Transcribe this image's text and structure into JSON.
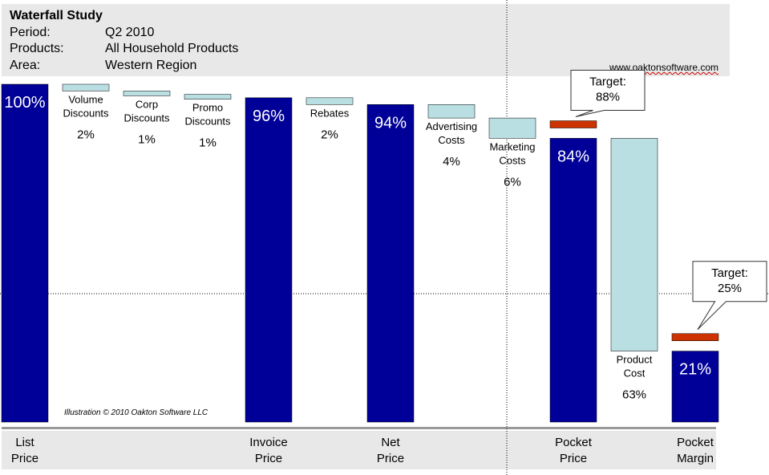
{
  "header": {
    "title": "Waterfall Study",
    "rows": [
      {
        "label": "Period:",
        "value": "Q2 2010"
      },
      {
        "label": "Products:",
        "value": "All Household Products"
      },
      {
        "label": "Area:",
        "value": "Western Region"
      }
    ],
    "url": "www.oaktonsoftware.com"
  },
  "chart_data": {
    "type": "waterfall",
    "unit": "%",
    "ylim": [
      0,
      100
    ],
    "colors": {
      "total": "#000099",
      "drop": "#b9dfe3",
      "target": "#cc3300",
      "axis": "#999999",
      "band": "#e8e8e8"
    },
    "steps": [
      {
        "kind": "total",
        "name": [
          "List",
          "Price"
        ],
        "value": 100,
        "label": "100%"
      },
      {
        "kind": "drop",
        "name": [
          "Volume",
          "Discounts"
        ],
        "value": 2,
        "label": "2%"
      },
      {
        "kind": "drop",
        "name": [
          "Corp",
          "Discounts"
        ],
        "value": 1,
        "label": "1%"
      },
      {
        "kind": "drop",
        "name": [
          "Promo",
          "Discounts"
        ],
        "value": 1,
        "label": "1%"
      },
      {
        "kind": "total",
        "name": [
          "Invoice",
          "Price"
        ],
        "value": 96,
        "label": "96%"
      },
      {
        "kind": "drop",
        "name": [
          "Rebates"
        ],
        "value": 2,
        "label": "2%"
      },
      {
        "kind": "total",
        "name": [
          "Net",
          "Price"
        ],
        "value": 94,
        "label": "94%"
      },
      {
        "kind": "drop",
        "name": [
          "Advertising",
          "Costs"
        ],
        "value": 4,
        "label": "4%"
      },
      {
        "kind": "drop",
        "name": [
          "Marketing",
          "Costs"
        ],
        "value": 6,
        "label": "6%"
      },
      {
        "kind": "total",
        "name": [
          "Pocket",
          "Price"
        ],
        "value": 84,
        "label": "84%",
        "target": 88,
        "target_label": [
          "Target:",
          "88%"
        ]
      },
      {
        "kind": "drop",
        "name": [
          "Product",
          "Cost"
        ],
        "value": 63,
        "label": "63%"
      },
      {
        "kind": "total",
        "name": [
          "Pocket",
          "Margin"
        ],
        "value": 21,
        "label": "21%",
        "target": 25,
        "target_label": [
          "Target:",
          "25%"
        ]
      }
    ],
    "annotation": "Illustration © 2010 Oakton Software LLC"
  }
}
